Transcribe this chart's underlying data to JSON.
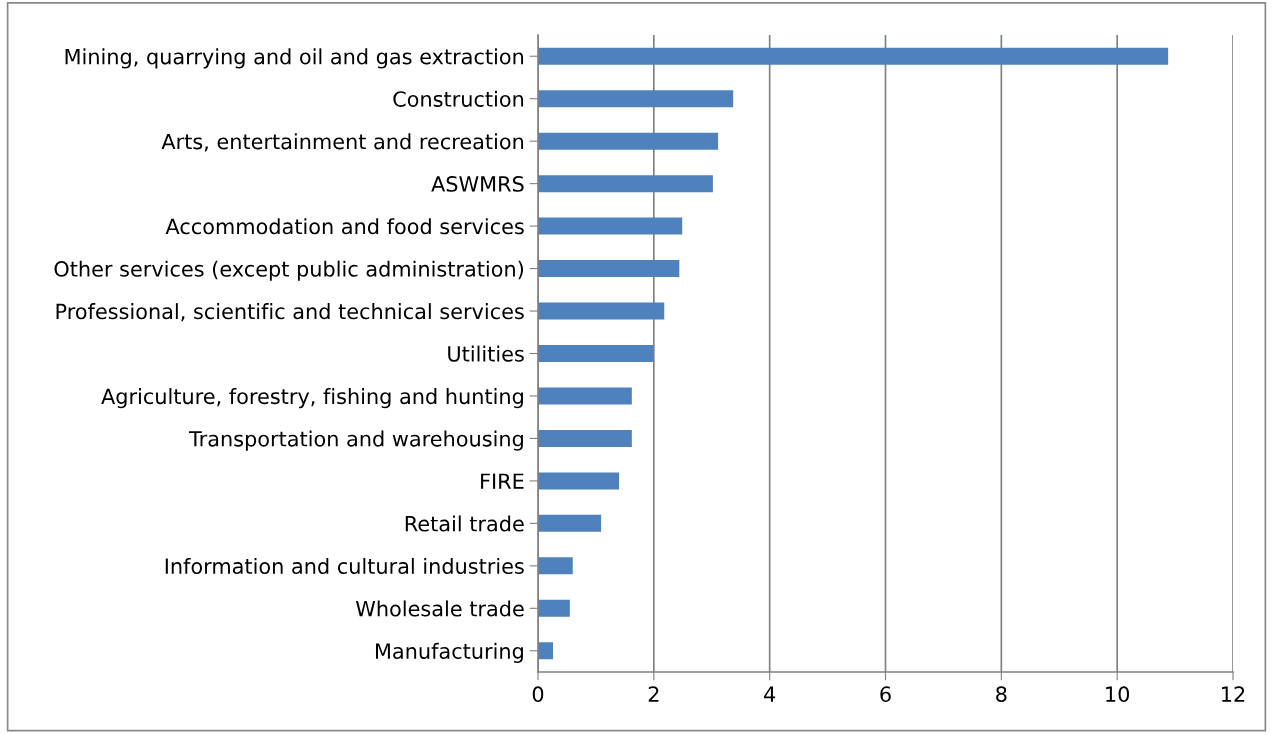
{
  "chart_data": {
    "type": "bar",
    "orientation": "horizontal",
    "categories": [
      "Mining, quarrying and oil and gas extraction",
      "Construction",
      "Arts, entertainment and recreation",
      "ASWMRS",
      "Accommodation and food services",
      "Other services (except public administration)",
      "Professional, scientific and technical services",
      "Utilities",
      "Agriculture, forestry, fishing and hunting",
      "Transportation and warehousing",
      "FIRE",
      "Retail trade",
      "Information and cultural industries",
      "Wholesale trade",
      "Manufacturing"
    ],
    "values": [
      10.88,
      3.37,
      3.11,
      3.02,
      2.49,
      2.44,
      2.18,
      1.99,
      1.62,
      1.62,
      1.4,
      1.09,
      0.6,
      0.55,
      0.26
    ],
    "color": "#4f81bd",
    "xlim": [
      0,
      12
    ],
    "xticks": [
      0,
      2,
      4,
      6,
      8,
      10,
      12
    ],
    "grid": "x"
  }
}
